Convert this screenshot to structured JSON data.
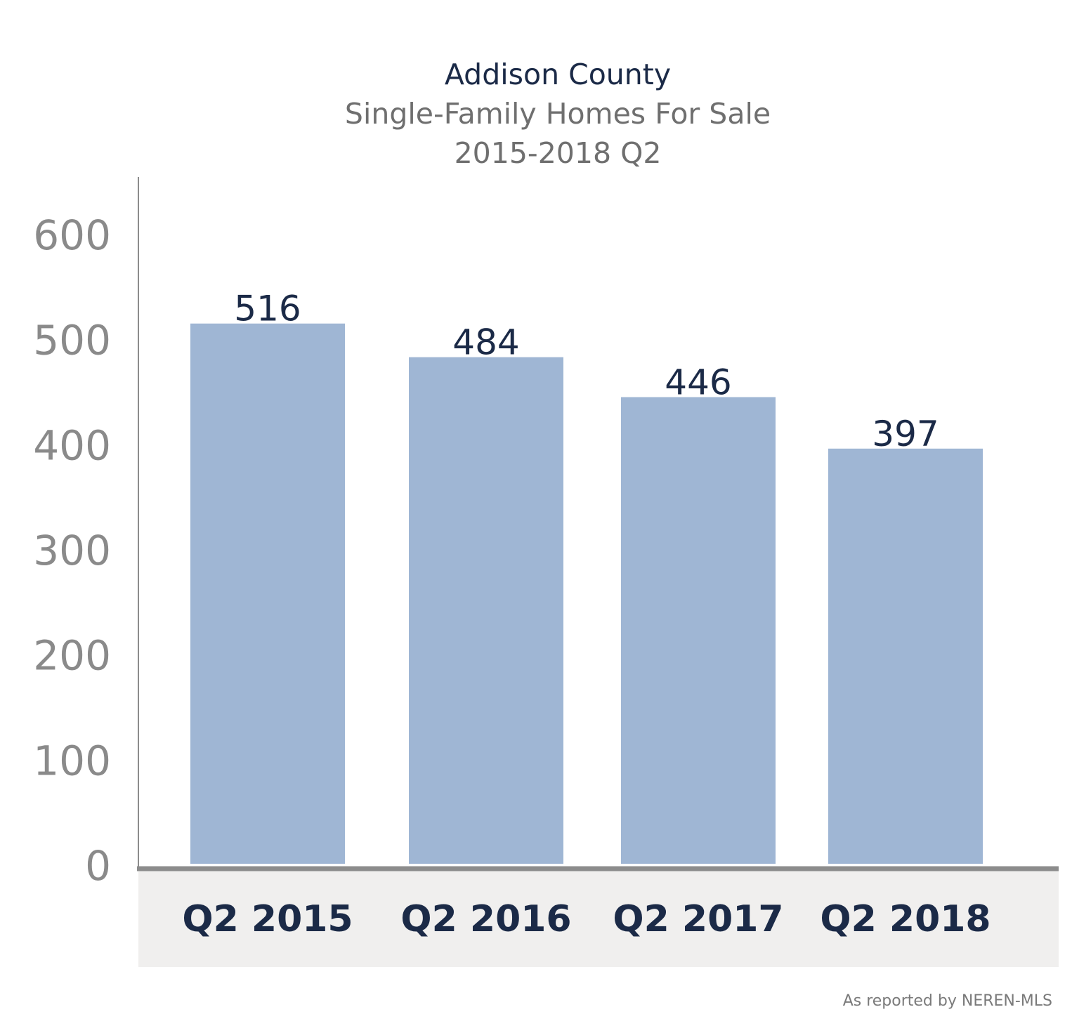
{
  "chart_data": {
    "type": "bar",
    "title": "Addison County",
    "subtitle": "Single-Family Homes For Sale",
    "period": "2015-2018 Q2",
    "categories": [
      "Q2 2015",
      "Q2 2016",
      "Q2 2017",
      "Q2 2018"
    ],
    "values": [
      516,
      484,
      446,
      397
    ],
    "data_labels": [
      "516",
      "484",
      "446",
      "397"
    ],
    "ylim": [
      0,
      600
    ],
    "yticks": [
      0,
      100,
      200,
      300,
      400,
      500,
      600
    ],
    "ytick_labels": [
      "0",
      "100",
      "200",
      "300",
      "400",
      "500",
      "600"
    ],
    "xlabel": "",
    "ylabel": "",
    "grid": false,
    "legend": "none",
    "colors": {
      "bar": "#9fb6d4",
      "title": "#1b2a47",
      "subtitle": "#6f6f6f",
      "ytick": "#8a8a8a",
      "data_label": "#1b2a47",
      "xtick": "#1b2a47",
      "axis": "#8c8c8c",
      "baseline": "#8c8c8c",
      "category_band": "#f0efee",
      "source": "#7a7a7a"
    }
  },
  "source_note": "As reported by NEREN-MLS"
}
